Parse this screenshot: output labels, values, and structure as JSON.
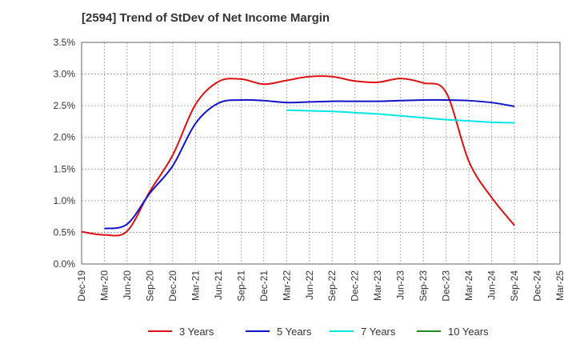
{
  "chart_data": {
    "type": "line",
    "title": "[2594]  Trend of StDev of Net Income Margin",
    "xlabel": "",
    "ylabel": "",
    "x_ticks": [
      "Dec-19",
      "Mar-20",
      "Jun-20",
      "Sep-20",
      "Dec-20",
      "Mar-21",
      "Jun-21",
      "Sep-21",
      "Dec-21",
      "Mar-22",
      "Jun-22",
      "Sep-22",
      "Dec-22",
      "Mar-23",
      "Jun-23",
      "Sep-23",
      "Dec-23",
      "Mar-24",
      "Jun-24",
      "Sep-24",
      "Dec-24",
      "Mar-25"
    ],
    "y_ticks": [
      "0.0%",
      "0.5%",
      "1.0%",
      "1.5%",
      "2.0%",
      "2.5%",
      "3.0%",
      "3.5%"
    ],
    "ylim": [
      0,
      3.5
    ],
    "grid": true,
    "legend_position": "bottom",
    "series": [
      {
        "name": "3 Years",
        "color": "#dd1111",
        "values": [
          0.51,
          0.46,
          0.52,
          1.15,
          1.72,
          2.52,
          2.88,
          2.92,
          2.84,
          2.9,
          2.96,
          2.96,
          2.89,
          2.87,
          2.93,
          2.86,
          2.71,
          1.62,
          1.05,
          0.61
        ]
      },
      {
        "name": "5 Years",
        "color": "#1111cc",
        "start_index": 1,
        "values": [
          0.56,
          0.63,
          1.12,
          1.55,
          2.22,
          2.54,
          2.59,
          2.58,
          2.55,
          2.56,
          2.57,
          2.57,
          2.57,
          2.58,
          2.59,
          2.59,
          2.58,
          2.55,
          2.49
        ]
      },
      {
        "name": "7 Years",
        "color": "#00e5e5",
        "start_index": 9,
        "values": [
          2.43,
          2.42,
          2.41,
          2.39,
          2.37,
          2.34,
          2.31,
          2.28,
          2.26,
          2.24,
          2.23
        ]
      },
      {
        "name": "10 Years",
        "color": "#228b22",
        "values": []
      }
    ]
  }
}
